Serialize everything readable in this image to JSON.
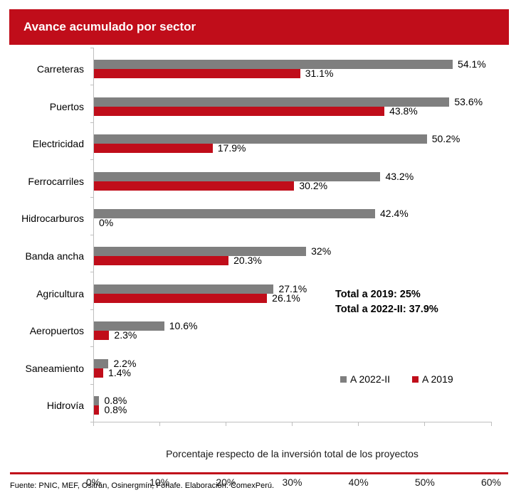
{
  "colors": {
    "accent_red": "#C00D1A",
    "series_gray": "#7F7F7F",
    "axis_gray": "#BFBFBF",
    "banner_text": "#FFFFFF"
  },
  "chart_data": {
    "type": "bar",
    "orientation": "horizontal",
    "title": "Avance acumulado por sector",
    "xlabel": "Porcentaje respecto de la inversión total de los proyectos",
    "xlim": [
      0,
      60
    ],
    "x_ticks": [
      "0%",
      "10%",
      "20%",
      "30%",
      "40%",
      "50%",
      "60%"
    ],
    "grid": false,
    "legend_position": "inside-bottom-right",
    "categories": [
      "Carreteras",
      "Puertos",
      "Electricidad",
      "Ferrocarriles",
      "Hidrocarburos",
      "Banda ancha",
      "Agricultura",
      "Aeropuertos",
      "Saneamiento",
      "Hidrovía"
    ],
    "series": [
      {
        "name": "A 2022-II",
        "color": "#7F7F7F",
        "values": [
          54.1,
          53.6,
          50.2,
          43.2,
          42.4,
          32,
          27.1,
          10.6,
          2.2,
          0.8
        ],
        "labels": [
          "54.1%",
          "53.6%",
          "50.2%",
          "43.2%",
          "42.4%",
          "32%",
          "27.1%",
          "10.6%",
          "2.2%",
          "0.8%"
        ]
      },
      {
        "name": "A 2019",
        "color": "#C00D1A",
        "values": [
          31.1,
          43.8,
          17.9,
          30.2,
          0,
          20.3,
          26.1,
          2.3,
          1.4,
          0.8
        ],
        "labels": [
          "31.1%",
          "43.8%",
          "17.9%",
          "30.2%",
          "0%",
          "20.3%",
          "26.1%",
          "2.3%",
          "1.4%",
          "0.8%"
        ]
      }
    ],
    "annotations": [
      "Total a 2019: 25%",
      "Total a 2022-II: 37.9%"
    ]
  },
  "footer": {
    "source": "Fuente: PNIC, MEF, Ositrán, Osinergmín, Fonafe. Elaboración: ComexPerú."
  }
}
